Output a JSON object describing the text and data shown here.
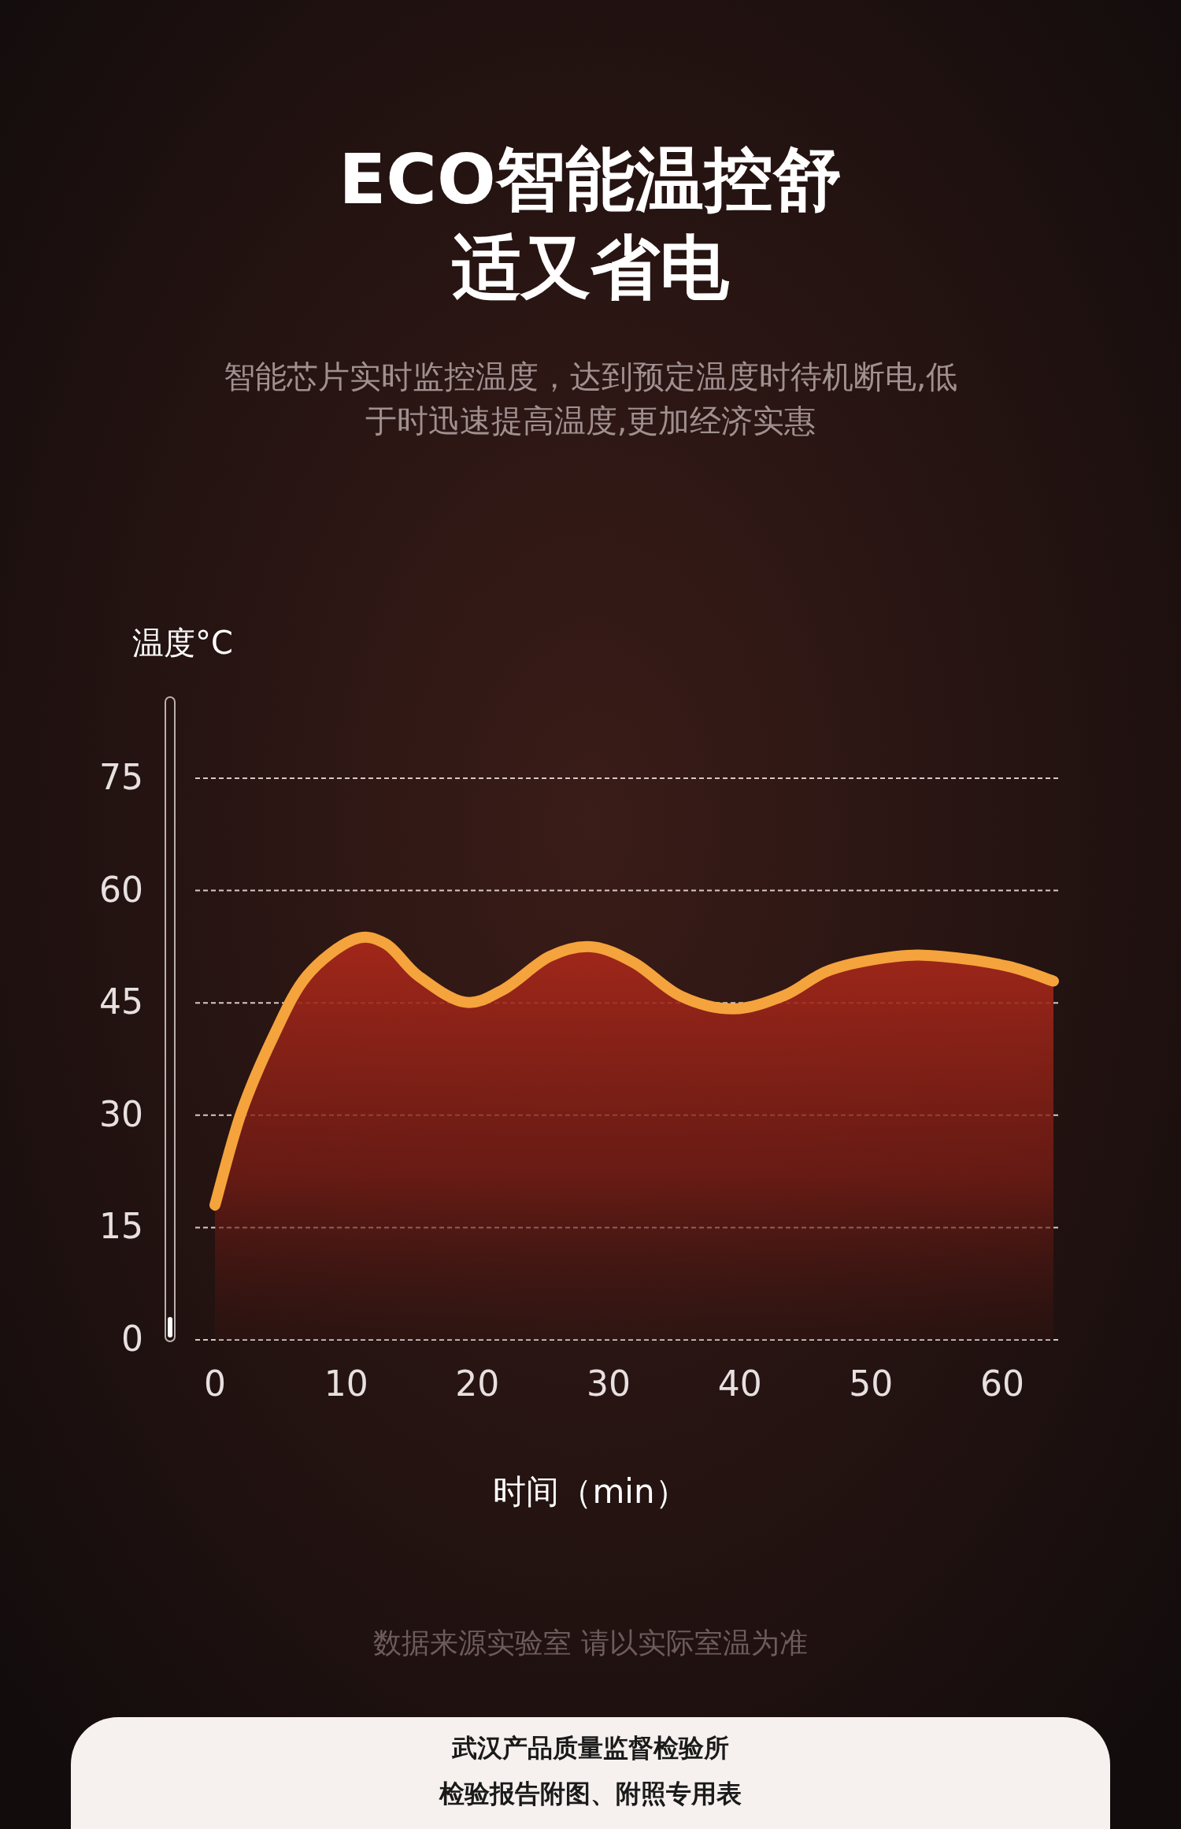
{
  "chart_data": {
    "type": "area",
    "title": "ECO智能温控舒适又省电",
    "subtitle": "智能芯片实时监控温度，达到预定温度时待机断电,低于时迅速提高温度,更加经济实惠",
    "xlabel": "时间（min）",
    "ylabel": "温度°C",
    "x": [
      0,
      2,
      4.5,
      7,
      10.5,
      13,
      15.5,
      19,
      22,
      25.5,
      28.7,
      32,
      35.5,
      39.5,
      43.4,
      46.9,
      51.9,
      55.4,
      60.4,
      63.9
    ],
    "series": [
      {
        "color": "#f5a33c",
        "values": [
          18,
          30.3,
          40.7,
          48.6,
          53.4,
          52.9,
          48.6,
          45.1,
          46.8,
          51.2,
          52.5,
          50.3,
          45.9,
          44.2,
          46.0,
          49.4,
          51.2,
          51.2,
          49.9,
          47.9
        ]
      }
    ],
    "xlim": [
      -1.5,
      64.5
    ],
    "ylim": [
      0,
      75
    ],
    "xticks": [
      0,
      10,
      20,
      30,
      40,
      50,
      60
    ],
    "yticks": [
      0,
      15,
      30,
      45,
      60,
      75
    ],
    "grid": "y",
    "annotations": [
      "数据来源实验室 请以实际室温为准",
      "武汉产品质量监督检验所",
      "检验报告附图、附照专用表"
    ]
  }
}
